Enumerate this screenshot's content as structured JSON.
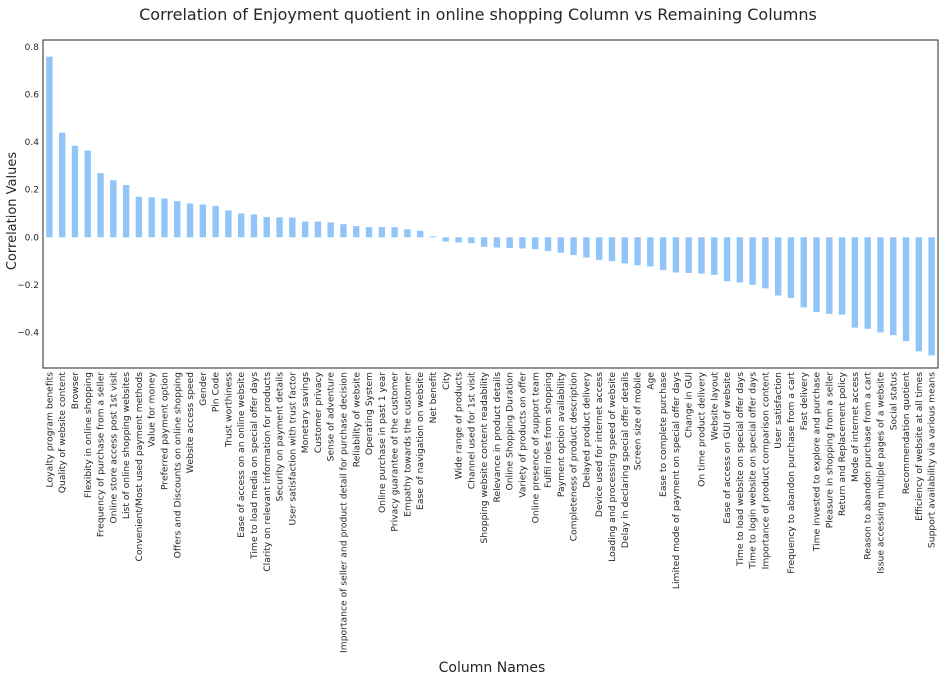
{
  "chart_data": {
    "type": "bar",
    "title": "Correlation of Enjoyment quotient in online shopping Column vs Remaining Columns",
    "xlabel": "Column Names",
    "ylabel": "Correlation Values",
    "ylim": [
      -0.55,
      0.83
    ],
    "yticks": [
      -0.4,
      -0.2,
      0.0,
      0.2,
      0.4,
      0.6,
      0.8
    ],
    "ytick_labels": [
      "−0.4",
      "−0.2",
      "0.0",
      "0.2",
      "0.4",
      "0.6",
      "0.8"
    ],
    "grid": false,
    "bar_color": "#92c5f7",
    "categories": [
      "Loyalty program benefits",
      "Quality of website content",
      "Browser",
      "Flexibity in online shopping",
      "Frequency of purchase from a seller",
      "Online store access post 1st visit",
      "List of online shopping websites",
      "Convenient/Most used payment methods",
      "Value for money",
      "Preferred payment option",
      "Offers and Discounts on online shopping",
      "Website access speed",
      "Gender",
      "Pin Code",
      "Trust worthiness",
      "Ease of access on an online website",
      "Time to load media on special offer days",
      "Clarity on relevant information for products",
      "Security on payment details",
      "User satisfaction with trust factor",
      "Monetary savings",
      "Customer privacy",
      "Sense of adventure",
      "Importance of seller and product detail for purchase decision",
      "Reliability of website",
      "Operating System",
      "Online purchase in past 1 year",
      "Privacy guarantee of the customer",
      "Empathy towards the customer",
      "Ease of navigation on website",
      "Net benefit",
      "City",
      "Wide range of products",
      "Channel used for 1st visit",
      "Shopping website content readability",
      "Relevance in product details",
      "Online Shopping Duration",
      "Variety of products on offer",
      "Online presence of support team",
      "Fulfil roles from shopping",
      "Payment option availability",
      "Completeness of product description",
      "Delayed product delivery",
      "Device used for internet access",
      "Loading and processing speed of website",
      "Delay in declaring special offer details",
      "Screen size of mobile",
      "Age",
      "Ease to complete purchase",
      "Limited mode of payment on special offer days",
      "Change in GUI",
      "On time product delivery",
      "Website layout",
      "Ease of access on GUI of website",
      "Time to load website on special offer days",
      "Time to login website on special offer days",
      "Importance of product comparison content",
      "User satisfaction",
      "Frequency to abandon purchase from a cart",
      "Fast delivery",
      "Time invested to explore and purchase",
      "Pleasure in shopping from a seller",
      "Return and Replacement policy",
      "Mode of internet access",
      "Reason to abandon purchase from a cart",
      "Issue accessing multiple pages of a website",
      "Social status",
      "Recommendation quotient",
      "Efficiency of website at all times",
      "Support availability via various means"
    ],
    "values": [
      0.76,
      0.44,
      0.385,
      0.365,
      0.27,
      0.24,
      0.22,
      0.17,
      0.168,
      0.163,
      0.152,
      0.142,
      0.138,
      0.132,
      0.113,
      0.1,
      0.096,
      0.085,
      0.084,
      0.083,
      0.066,
      0.066,
      0.063,
      0.055,
      0.047,
      0.043,
      0.043,
      0.042,
      0.034,
      0.027,
      0.004,
      -0.018,
      -0.022,
      -0.025,
      -0.04,
      -0.043,
      -0.045,
      -0.047,
      -0.05,
      -0.058,
      -0.065,
      -0.075,
      -0.085,
      -0.095,
      -0.1,
      -0.11,
      -0.118,
      -0.123,
      -0.138,
      -0.148,
      -0.15,
      -0.153,
      -0.158,
      -0.185,
      -0.19,
      -0.2,
      -0.215,
      -0.245,
      -0.255,
      -0.295,
      -0.315,
      -0.322,
      -0.325,
      -0.38,
      -0.385,
      -0.4,
      -0.412,
      -0.437,
      -0.48,
      -0.497
    ]
  }
}
